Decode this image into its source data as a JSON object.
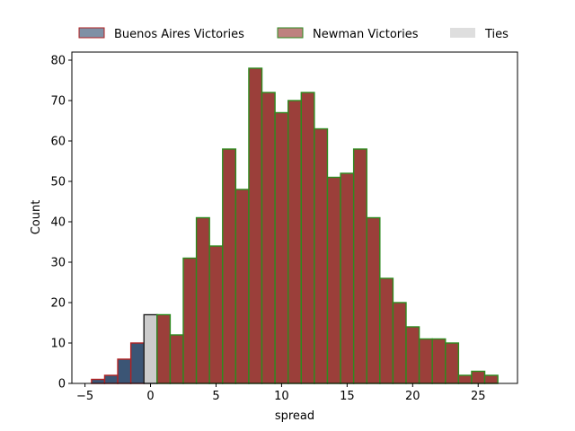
{
  "chart_data": {
    "type": "bar",
    "title": "",
    "xlabel": "spread",
    "ylabel": "Count",
    "xlim": [
      -6,
      28
    ],
    "ylim": [
      0,
      82
    ],
    "xticks": [
      -5,
      0,
      5,
      10,
      15,
      20,
      25
    ],
    "yticks": [
      0,
      10,
      20,
      30,
      40,
      50,
      60,
      70,
      80
    ],
    "bin_width": 1,
    "legend_position": "top, above plot",
    "grid": false,
    "colors": {
      "buenos_aires_fill": "#3b5575",
      "buenos_aires_edge": "#b22222",
      "newman_fill": "#9b3f3a",
      "newman_edge": "#2e8b1f",
      "ties_fill": "#cccccc",
      "ties_edge": "#222222"
    },
    "series": [
      {
        "name": "Buenos Aires Victories",
        "key": "buenos_aires",
        "x": [
          -4,
          -3,
          -2,
          -1
        ],
        "values": [
          1,
          2,
          6,
          10
        ]
      },
      {
        "name": "Ties",
        "key": "ties",
        "x": [
          0
        ],
        "values": [
          17
        ]
      },
      {
        "name": "Newman Victories",
        "key": "newman",
        "x": [
          1,
          2,
          3,
          4,
          5,
          6,
          7,
          8,
          9,
          10,
          11,
          12,
          13,
          14,
          15,
          16,
          17,
          18,
          19,
          20,
          21,
          22,
          23,
          24,
          25,
          26
        ],
        "values": [
          17,
          12,
          31,
          41,
          34,
          58,
          48,
          78,
          72,
          67,
          70,
          72,
          63,
          51,
          52,
          58,
          41,
          26,
          20,
          14,
          11,
          11,
          10,
          2,
          3,
          2
        ]
      }
    ],
    "legend": [
      {
        "label": "Buenos Aires Victories",
        "key": "buenos_aires"
      },
      {
        "label": "Newman Victories",
        "key": "newman"
      },
      {
        "label": "Ties",
        "key": "ties"
      }
    ]
  }
}
